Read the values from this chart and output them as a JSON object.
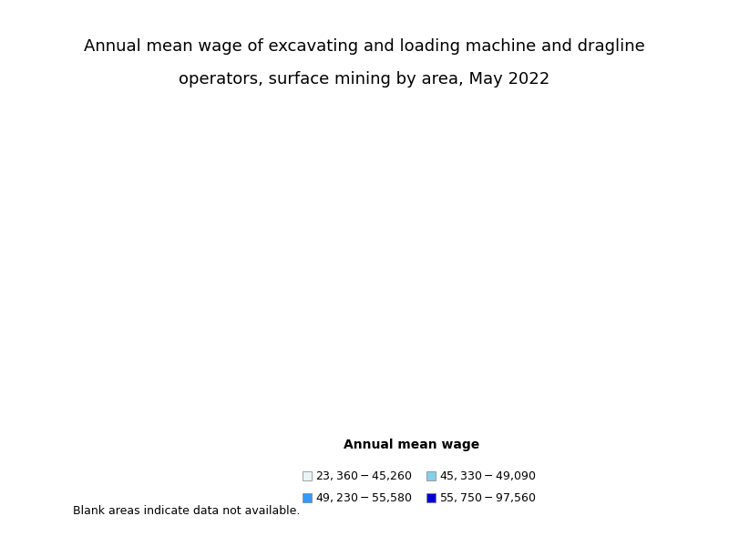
{
  "title_line1": "Annual mean wage of excavating and loading machine and dragline",
  "title_line2": "operators, surface mining by area, May 2022",
  "legend_title": "Annual mean wage",
  "legend_items": [
    {
      "label": "$23,360 - $45,260",
      "color": "#e8f4f8"
    },
    {
      "label": "$45,330 - $49,090",
      "color": "#87ceeb"
    },
    {
      "label": "$49,230 - $55,580",
      "color": "#3399ff"
    },
    {
      "label": "$55,750 - $97,560",
      "color": "#0000cd"
    }
  ],
  "blank_note": "Blank areas indicate data not available.",
  "title_fontsize": 13,
  "legend_fontsize": 9,
  "background_color": "#ffffff"
}
